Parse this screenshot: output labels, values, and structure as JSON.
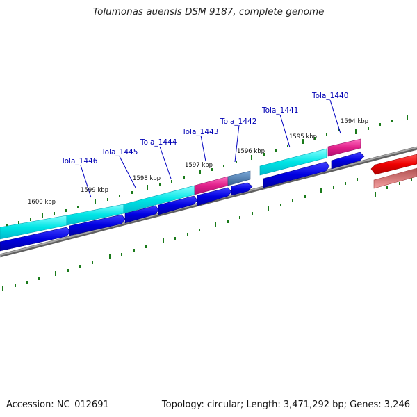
{
  "title": "Tolumonas auensis DSM 9187, complete genome",
  "accession": "Accession: NC_012691",
  "summary": "Topology: circular; Length: 3,471,292 bp; Genes: 3,246",
  "colors": {
    "cds_forward": "#00e5e5",
    "cds_reverse": "#0000e0",
    "highlight": "#e0208a",
    "slate": "#4a7fb5",
    "red": "#ee0000",
    "pink": "#f08080",
    "backbone": "#808080",
    "ticks": "#1a7a1a",
    "label": "#0000b4"
  },
  "gene_labels": [
    "Tola_1446",
    "Tola_1445",
    "Tola_1444",
    "Tola_1443",
    "Tola_1442",
    "Tola_1441",
    "Tola_1440"
  ],
  "kbp_labels": [
    "1600 kbp",
    "1599 kbp",
    "1598 kbp",
    "1597 kbp",
    "1596 kbp",
    "1595 kbp",
    "1594 kbp"
  ]
}
